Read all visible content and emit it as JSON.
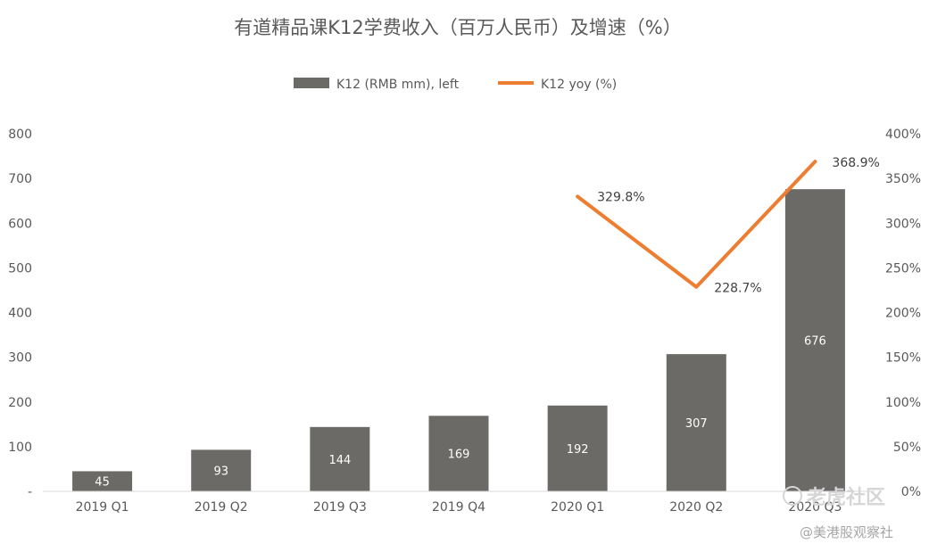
{
  "chart_data": {
    "type": "bar",
    "title": "有道精品课K12学费收入（百万人民币）及增速（%）",
    "categories": [
      "2019 Q1",
      "2019 Q2",
      "2019 Q3",
      "2019 Q4",
      "2020 Q1",
      "2020 Q2",
      "2020 Q3"
    ],
    "series": [
      {
        "name": "K12 (RMB mm), left",
        "type": "bar",
        "axis": "left",
        "color": "#6b6a66",
        "values": [
          45,
          93,
          144,
          169,
          192,
          307,
          676
        ],
        "labels": [
          "45",
          "93",
          "144",
          "169",
          "192",
          "307",
          "676"
        ]
      },
      {
        "name": "K12 yoy (%)",
        "type": "line",
        "axis": "right",
        "color": "#ed7d31",
        "values": [
          null,
          null,
          null,
          null,
          329.8,
          228.7,
          368.9
        ],
        "labels": [
          "",
          "",
          "",
          "",
          "329.8%",
          "228.7%",
          "368.9%"
        ]
      }
    ],
    "y_left": {
      "ylim": [
        0,
        800
      ],
      "ticks": [
        0,
        100,
        200,
        300,
        400,
        500,
        600,
        700,
        800
      ],
      "tick_labels": [
        "-",
        "100",
        "200",
        "300",
        "400",
        "500",
        "600",
        "700",
        "800"
      ]
    },
    "y_right": {
      "ylim": [
        0,
        400
      ],
      "ticks": [
        0,
        50,
        100,
        150,
        200,
        250,
        300,
        350,
        400
      ],
      "tick_labels": [
        "0%",
        "50%",
        "100%",
        "150%",
        "200%",
        "250%",
        "300%",
        "350%",
        "400%"
      ]
    },
    "grid": false,
    "legend_position": "top-center"
  },
  "watermark": {
    "main": "老虎社区",
    "sub": "@美港股观察社"
  }
}
